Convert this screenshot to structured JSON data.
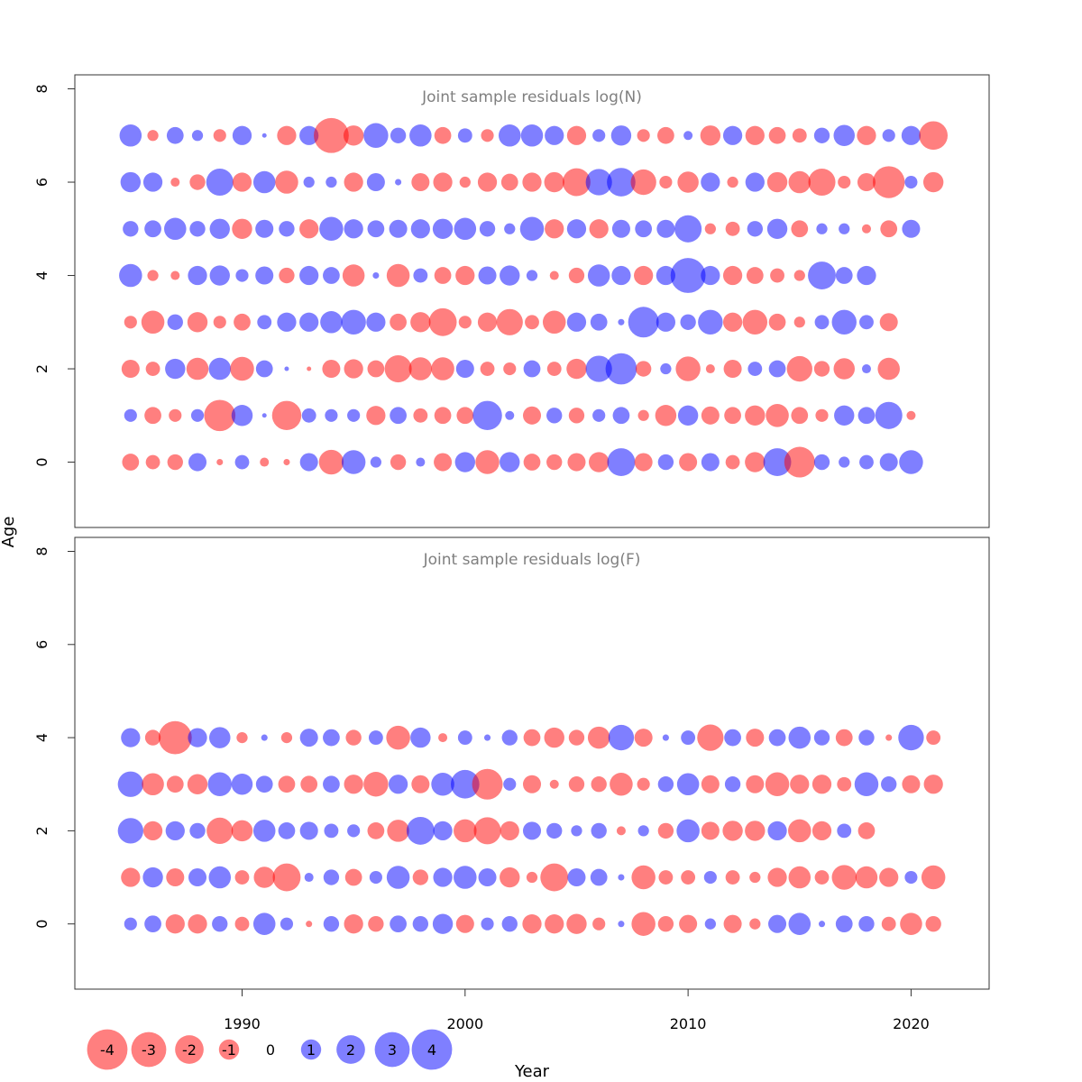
{
  "chart_data": {
    "type": "bubble",
    "xlabel": "Year",
    "ylabel": "Age",
    "xlim": [
      1982.5,
      2023.5
    ],
    "x_ticks": [
      1990,
      2000,
      2010,
      2020
    ],
    "y_ticks": [
      0,
      2,
      4,
      6,
      8
    ],
    "ylim": [
      -1.4,
      8.3
    ],
    "colors": {
      "negative": "#ff0000",
      "positive": "#0000ff",
      "opacity": 0.5
    },
    "legend": {
      "placement": "bottom-left",
      "entries": [
        {
          "label": "-4",
          "value": -4
        },
        {
          "label": "-3",
          "value": -3
        },
        {
          "label": "-2",
          "value": -2
        },
        {
          "label": "-1",
          "value": -1
        },
        {
          "label": "0",
          "value": 0
        },
        {
          "label": "1",
          "value": 1
        },
        {
          "label": "2",
          "value": 2
        },
        {
          "label": "3",
          "value": 3
        },
        {
          "label": "4",
          "value": 4
        }
      ]
    },
    "panels": [
      {
        "title": "Joint sample residuals log(N)",
        "first_year": 1985,
        "ages": [
          7,
          6,
          5,
          4,
          3,
          2,
          1,
          0
        ],
        "residuals": [
          [
            1.2,
            -0.3,
            0.7,
            0.3,
            -0.4,
            0.9,
            0.05,
            -0.9,
            0.9,
            -3.0,
            -1.0,
            1.5,
            0.6,
            1.2,
            -0.7,
            0.5,
            -0.4,
            1.2,
            1.2,
            0.9,
            -0.9,
            0.4,
            1.0,
            -0.4,
            -0.7,
            0.2,
            -1.0,
            0.9,
            -0.9,
            -0.7,
            -0.5,
            0.6,
            1.1,
            -0.9,
            0.4,
            0.9,
            -2.0
          ],
          [
            1.0,
            0.9,
            -0.2,
            -0.6,
            1.8,
            -0.9,
            1.2,
            -1.3,
            0.3,
            0.3,
            -0.9,
            0.8,
            0.1,
            -0.8,
            -0.9,
            -0.3,
            -0.9,
            -0.7,
            -0.9,
            -1.0,
            -1.9,
            1.7,
            2.0,
            -1.6,
            -0.4,
            -1.1,
            0.9,
            -0.3,
            0.9,
            -1.0,
            -1.2,
            -1.8,
            -0.4,
            -0.8,
            -2.5,
            0.4,
            -1.0
          ],
          [
            0.6,
            0.7,
            1.2,
            0.6,
            1.0,
            -1.0,
            0.8,
            0.6,
            -0.9,
            1.4,
            0.9,
            0.7,
            0.8,
            0.9,
            1.0,
            1.2,
            0.6,
            0.3,
            1.4,
            -0.9,
            0.9,
            -0.9,
            0.8,
            0.7,
            0.8,
            1.8,
            -0.3,
            -0.5,
            0.6,
            1.0,
            -0.7,
            0.3,
            0.3,
            -0.2,
            -0.7,
            0.8
          ],
          [
            1.3,
            -0.3,
            -0.2,
            0.9,
            1.0,
            0.4,
            0.8,
            -0.6,
            0.9,
            0.7,
            -1.2,
            0.1,
            -1.3,
            0.5,
            -0.7,
            -0.9,
            0.8,
            1.0,
            0.3,
            -0.2,
            -0.6,
            1.2,
            0.9,
            -0.9,
            0.9,
            3.0,
            0.9,
            -0.9,
            -0.7,
            -0.5,
            -0.3,
            1.9,
            0.7,
            0.9
          ],
          [
            -0.4,
            -1.3,
            0.6,
            -1.0,
            -0.4,
            -0.7,
            0.5,
            0.9,
            0.9,
            1.2,
            1.5,
            0.9,
            -0.7,
            -1.0,
            -1.9,
            -0.4,
            -0.9,
            -1.7,
            -0.5,
            -1.3,
            0.9,
            0.7,
            0.1,
            2.3,
            0.9,
            0.6,
            1.5,
            -0.9,
            -1.5,
            -0.7,
            -0.3,
            0.5,
            1.5,
            0.5,
            -0.8
          ],
          [
            -0.8,
            -0.5,
            1.0,
            -1.2,
            1.2,
            -1.4,
            0.7,
            0.05,
            -0.05,
            -0.8,
            -0.9,
            -0.7,
            -1.8,
            -1.3,
            -1.3,
            0.8,
            -0.5,
            -0.4,
            0.7,
            -0.5,
            -1.0,
            1.7,
            2.4,
            -0.6,
            0.3,
            -1.5,
            -0.2,
            -0.8,
            0.5,
            0.7,
            -1.6,
            -0.6,
            -1.1,
            0.2,
            -1.2
          ],
          [
            0.4,
            -0.7,
            -0.4,
            0.4,
            -2.4,
            1.1,
            0.05,
            -2.1,
            0.5,
            0.4,
            0.4,
            -0.9,
            0.7,
            -0.5,
            -0.7,
            -0.7,
            2.1,
            0.2,
            -0.8,
            0.6,
            -0.6,
            0.4,
            0.7,
            -0.3,
            -1.1,
            1.0,
            -0.8,
            -0.7,
            -1.0,
            -1.3,
            -0.7,
            -0.4,
            1.0,
            0.7,
            1.8,
            -0.2
          ],
          [
            -0.7,
            -0.5,
            -0.6,
            0.8,
            -0.1,
            0.5,
            -0.2,
            -0.1,
            0.8,
            -1.5,
            1.4,
            0.3,
            -0.6,
            0.2,
            -0.8,
            1.0,
            -1.4,
            1.0,
            -0.7,
            -0.6,
            -0.8,
            -1.0,
            1.9,
            -0.8,
            0.6,
            -0.8,
            0.8,
            -0.5,
            -1.0,
            1.9,
            -2.3,
            0.6,
            0.3,
            0.5,
            0.8,
            1.4
          ]
        ]
      },
      {
        "title": "Joint sample residuals log(F)",
        "first_year": 1985,
        "ages": [
          4,
          3,
          2,
          1,
          0
        ],
        "residuals": [
          [
            0.9,
            -0.6,
            -2.7,
            0.9,
            1.1,
            -0.3,
            0.1,
            -0.3,
            0.8,
            0.7,
            -0.6,
            0.5,
            -1.4,
            1.0,
            -0.2,
            0.5,
            0.1,
            0.6,
            -0.7,
            -1.0,
            -0.6,
            -1.2,
            1.6,
            -0.8,
            0.1,
            0.5,
            -1.7,
            0.7,
            -0.8,
            0.7,
            1.2,
            0.6,
            -0.7,
            0.6,
            -0.1,
            1.6,
            -0.5
          ],
          [
            1.6,
            -1.2,
            -0.7,
            -1.0,
            1.4,
            1.1,
            0.7,
            -0.7,
            -0.7,
            0.7,
            -0.9,
            -1.5,
            0.9,
            -0.8,
            1.3,
            2.0,
            -2.3,
            0.4,
            -0.8,
            -0.2,
            -0.6,
            -0.6,
            -1.3,
            -0.4,
            0.6,
            1.2,
            -0.8,
            0.6,
            -0.8,
            -1.4,
            -0.9,
            -0.9,
            -0.5,
            1.4,
            0.6,
            -0.8,
            -0.9
          ],
          [
            1.6,
            -0.9,
            0.9,
            0.6,
            -1.7,
            -1.1,
            1.2,
            0.7,
            0.8,
            0.5,
            0.4,
            -0.7,
            -1.2,
            1.9,
            0.9,
            -1.3,
            -1.8,
            -0.9,
            0.8,
            0.6,
            0.3,
            0.6,
            -0.2,
            0.3,
            -0.6,
            1.3,
            -0.8,
            -1.0,
            -1.0,
            0.9,
            -1.3,
            -0.9,
            0.5,
            -0.7
          ],
          [
            -0.9,
            1.0,
            -0.8,
            0.8,
            1.2,
            -0.5,
            -1.1,
            -1.9,
            0.2,
            0.6,
            -0.7,
            0.4,
            1.3,
            -0.6,
            0.9,
            1.3,
            0.8,
            -1.0,
            -0.3,
            -1.9,
            0.8,
            0.7,
            0.1,
            -1.4,
            -0.5,
            -0.5,
            0.4,
            -0.5,
            -0.3,
            -0.9,
            -1.2,
            -0.5,
            -1.5,
            -1.2,
            -0.9,
            0.4,
            -1.4
          ],
          [
            0.4,
            0.7,
            -0.9,
            -0.9,
            0.6,
            -0.5,
            1.2,
            0.4,
            -0.1,
            0.6,
            -0.9,
            -0.6,
            0.7,
            0.6,
            1.0,
            -0.8,
            0.4,
            0.6,
            -0.9,
            -0.9,
            -1.0,
            -0.4,
            0.1,
            -1.4,
            -0.6,
            -0.8,
            0.3,
            -0.8,
            -0.3,
            0.8,
            1.2,
            0.1,
            0.7,
            0.6,
            -0.5,
            -1.2,
            -0.6
          ]
        ]
      }
    ]
  }
}
